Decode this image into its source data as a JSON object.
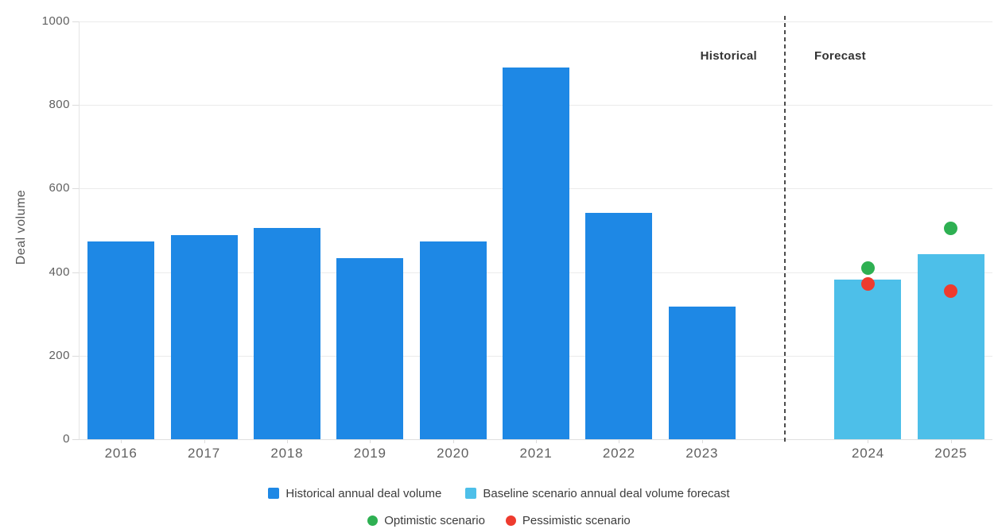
{
  "chart_data": {
    "type": "bar",
    "title": "",
    "xlabel": "",
    "ylabel": "Deal volume",
    "ylim": [
      0,
      1000
    ],
    "yticks": [
      0,
      200,
      400,
      600,
      800,
      1000
    ],
    "grid": "horizontal",
    "legend_position": "bottom",
    "categories": [
      "2016",
      "2017",
      "2018",
      "2019",
      "2020",
      "2021",
      "2022",
      "2023",
      "2024",
      "2025"
    ],
    "region_labels": {
      "historical": "Historical",
      "forecast": "Forecast"
    },
    "separator": {
      "style": "dashed-vertical",
      "between": [
        "2023",
        "2024"
      ]
    },
    "series": [
      {
        "name": "Historical annual deal volume",
        "type": "bar",
        "color": "#1e88e5",
        "data": {
          "2016": 474,
          "2017": 488,
          "2018": 506,
          "2019": 434,
          "2020": 473,
          "2021": 890,
          "2022": 541,
          "2023": 317
        }
      },
      {
        "name": "Baseline scenario annual deal volume forecast",
        "type": "bar",
        "color": "#4dbfe9",
        "data": {
          "2024": 382,
          "2025": 443
        }
      },
      {
        "name": "Optimistic scenario",
        "type": "scatter",
        "color": "#2eb052",
        "data": {
          "2024": 410,
          "2025": 505
        }
      },
      {
        "name": "Pessimistic scenario",
        "type": "scatter",
        "color": "#ee3b2e",
        "data": {
          "2024": 371,
          "2025": 354
        }
      }
    ]
  }
}
